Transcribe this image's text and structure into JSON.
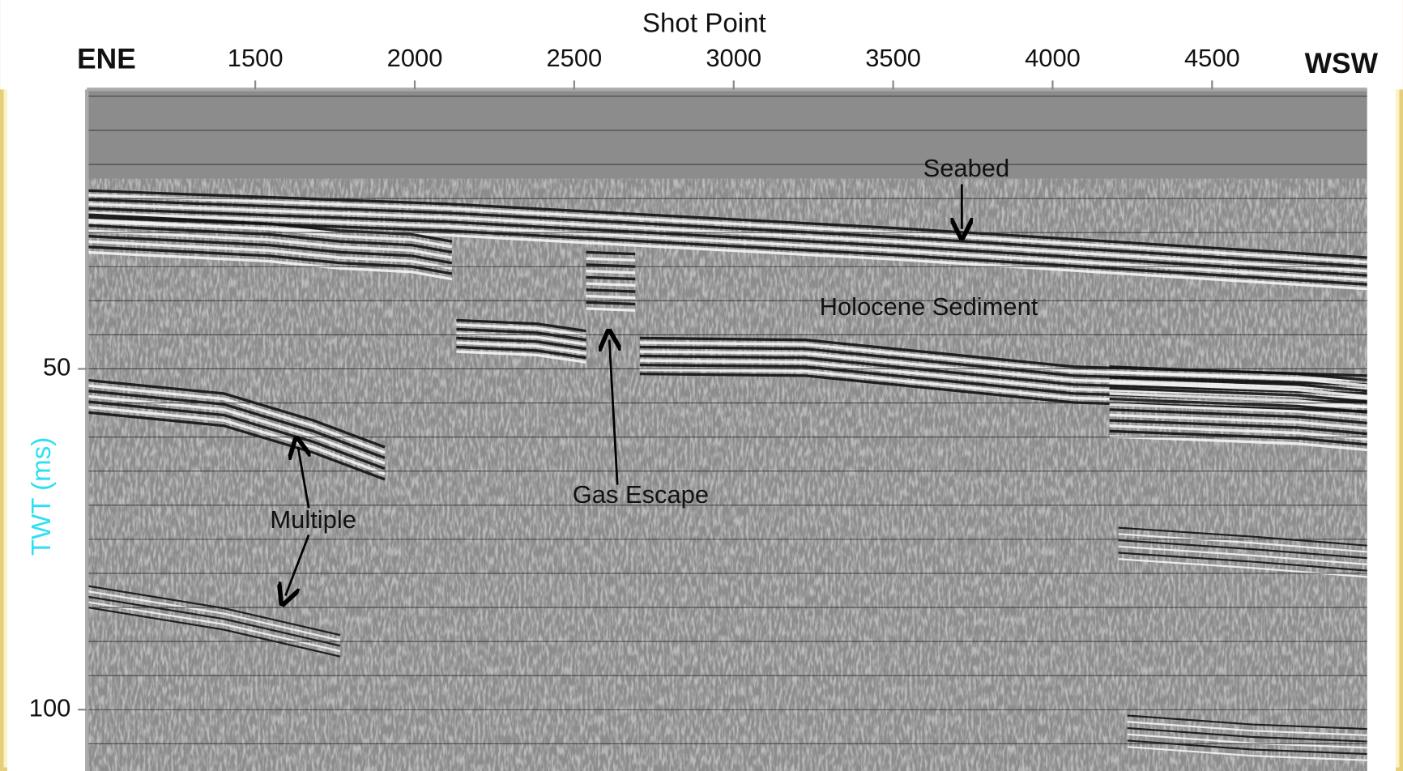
{
  "chart_data": {
    "type": "seismic",
    "title": "Shot Point",
    "left_label": "ENE",
    "right_label": "WSW",
    "ylabel": "TWT (ms)",
    "ylabel_color": "#2fe0f0",
    "xlim": [
      972,
      4986
    ],
    "xticks": [
      1500,
      2000,
      2500,
      3000,
      3500,
      4000,
      4500
    ],
    "ylim": [
      9,
      109
    ],
    "y_inverted": true,
    "yticks": [
      50,
      100
    ],
    "minor_yticks": [
      10,
      15,
      20,
      25,
      30,
      35,
      40,
      45,
      55,
      60,
      65,
      70,
      75,
      80,
      85,
      90,
      95,
      105
    ],
    "grid": true,
    "annotations": [
      "Seabed",
      "Holocene Sediment",
      "Gas Escape",
      "Multiple"
    ]
  }
}
